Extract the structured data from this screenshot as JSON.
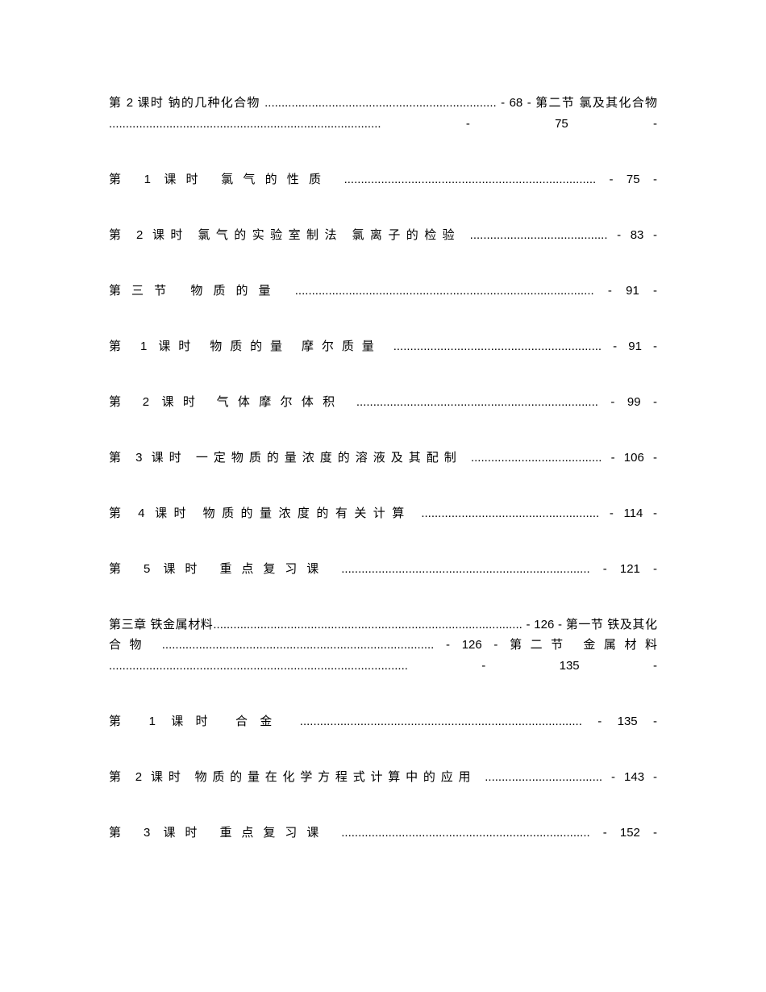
{
  "entries": [
    {
      "text": "第 2 课时 钠的几种化合物 ..................................................................... - 68 - 第二节 氯及其化合物 ................................................................................. - 75 -"
    },
    {
      "text": "第 1 课时 氯气的性质 ........................................................................... - 75 -"
    },
    {
      "text": "第 2 课时 氯气的实验室制法 氯离子的检验 ......................................... - 83 -"
    },
    {
      "text": "第三节 物质的量 ......................................................................................... - 91 -"
    },
    {
      "text": "第 1 课时 物质的量 摩尔质量 .............................................................. - 91 -"
    },
    {
      "text": "第 2 课时 气体摩尔体积 ........................................................................ - 99 -"
    },
    {
      "text": "第 3 课时 一定物质的量浓度的溶液及其配制 ....................................... - 106 -"
    },
    {
      "text": "第 4 课时 物质的量浓度的有关计算 ..................................................... - 114 -"
    },
    {
      "text": "第 5 课时 重点复习课 .......................................................................... - 121 -"
    },
    {
      "text": "第三章 铁金属材料............................................................................................ - 126 - 第一节 铁及其化合物 ................................................................................. - 126 - 第二节 金属材料 ......................................................................................... - 135 -"
    },
    {
      "text": "第 1 课时 合金 .................................................................................... - 135 -"
    },
    {
      "text": "第 2 课时 物质的量在化学方程式计算中的应用 ................................... - 143 -"
    },
    {
      "text": "第 3 课时 重点复习课 .......................................................................... - 152 -"
    }
  ],
  "style": {
    "font_size": 15,
    "line_height": 1.7,
    "text_color": "#000000",
    "background_color": "#ffffff",
    "entry_margin_bottom": 18
  }
}
